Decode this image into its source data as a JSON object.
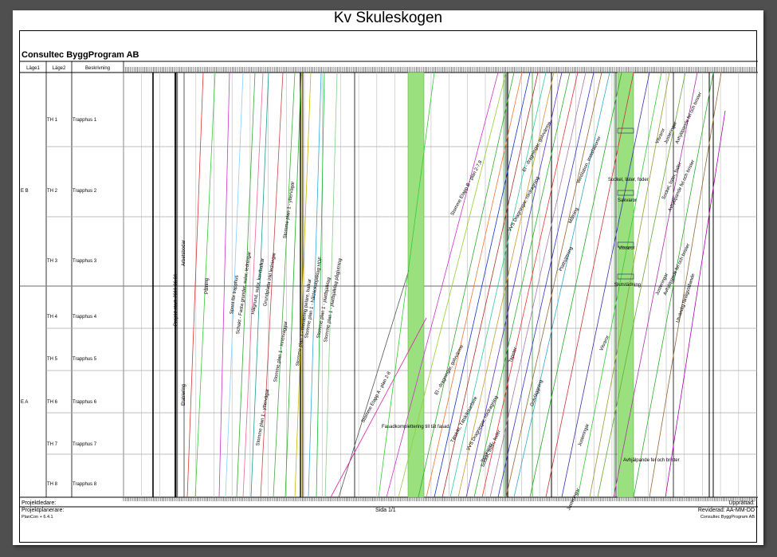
{
  "title": "Kv Skuleskogen",
  "company": "Consultec ByggProgram AB",
  "columns": {
    "col1": "Läge1",
    "col2": "Läge2",
    "col3": "Beskrivning"
  },
  "groups": [
    {
      "label": "E B",
      "rows": [
        {
          "code": "TH 1",
          "desc": "Trapphus 1"
        },
        {
          "code": "TH 2",
          "desc": "Trapphus 2"
        },
        {
          "code": "TH 3",
          "desc": "Trapphus 3"
        }
      ]
    },
    {
      "label": "E A",
      "rows": [
        {
          "code": "TH 4",
          "desc": "Trapphus 4"
        },
        {
          "code": "TH 5",
          "desc": "Trapphus 5"
        },
        {
          "code": "TH 6",
          "desc": "Trapphus 6"
        },
        {
          "code": "TH 7",
          "desc": "Trapphus 7"
        },
        {
          "code": "TH 8",
          "desc": "Trapphus 8"
        }
      ]
    }
  ],
  "activities": {
    "projekt_start": "Projekt start: 2011-06-01",
    "arbetsbodar": "Arbetsbodar",
    "etablering": "Etablering",
    "palning": "Pålning",
    "spont": "Spont för trapphus",
    "schakt": "Schakt - Fasta grunder, sulor, ledningar",
    "hasgrund": "Hålgrund, sulor, kantbalkar",
    "grundplatta": "Grundplatta inkl ledningar",
    "stomme_plan1_yttervaggar": "Stomme plan 1 - yttervägar",
    "stomme_plan1_innervaggar": "Stomme plan 1 - innerväggar",
    "stomme_montering": "Stomme plan 1 - montering pelare, balkar",
    "stomme_hdf": "Stomme plan 1 - håldäcksbjälklag HDF",
    "stomme_platbjalklag": "Stomme plan 1 - plattbjälklag",
    "stomme_pagjutning": "Stomme plan 1 - plattbjälklag pågjutning",
    "stomme_etapp_b": "Stomme Etapp B - plan 2-7,8",
    "stomme_etapp_a": "Stomme Etapp A - plan 2-8",
    "fasadkomplettering": "Fasadkomplettering till tät fasad",
    "sockel": "Sockel, lister, foder",
    "sakvaror": "Sakvaror",
    "vitvaror": "Vitvaror",
    "justeringar": "Justeringar",
    "avhjalpande": "Avhjälpande fel och brister",
    "slutstadning": "Slutstädning",
    "utvandig": "Utvändig färdigställande",
    "tapeter": "Tapeter",
    "golvlaggning": "Golvläggning",
    "taklaggning": "Tätskikt, Tätskiktsarbete",
    "vvs": "VVS Dragningar, rördragning",
    "el": "El - dragningar, golvvärme",
    "malning": "Målning",
    "ventilation": "Ventilation, installationer",
    "plattsattning": "Plattsättning",
    "snickerier": "Snickerier"
  },
  "footer": {
    "projektledare": "Projektledare:",
    "projektplanerare": "Projektplanerare:",
    "software": "PlanCon + 6.4.1",
    "page": "Sida 1/1",
    "upprattad": "Upprättad:",
    "reviderad": "Reviderad: AA-MM-DD",
    "company_small": "Consultec ByggProgram AB"
  }
}
